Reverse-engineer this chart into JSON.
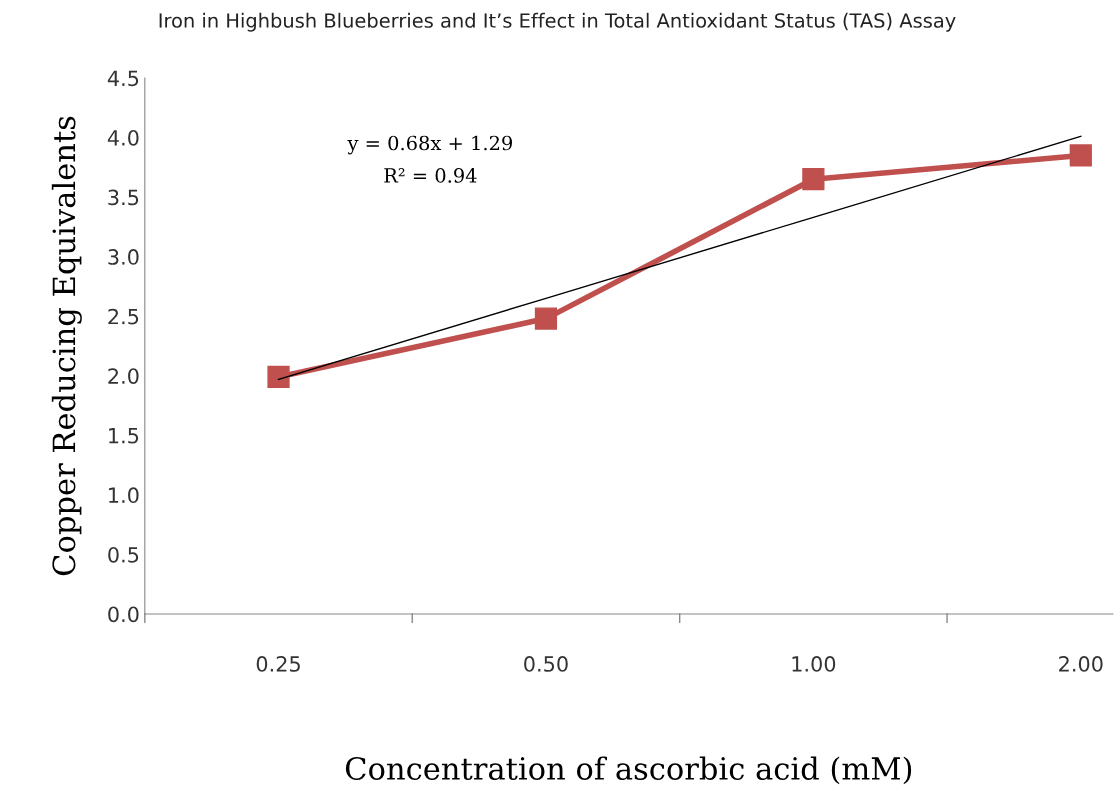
{
  "chart_data": {
    "type": "line",
    "title": "Iron in Highbush Blueberries and It’s Effect in Total Antioxidant Status (TAS) Assay",
    "xlabel": "Concentration of ascorbic acid (mM)",
    "ylabel": "Copper Reducing Equivalents",
    "categories": [
      "0.25",
      "0.50",
      "1.00",
      "2.00"
    ],
    "series": [
      {
        "color": "#c0504d",
        "values": [
          1.99,
          2.48,
          3.65,
          3.85
        ],
        "marker": "square"
      },
      {
        "color": "#000000",
        "values": [
          1.97,
          2.65,
          3.33,
          4.01
        ],
        "marker": "none"
      }
    ],
    "annotations": [
      "y = 0.68x + 1.29",
      "R² = 0.94"
    ],
    "ylim": [
      0,
      4.5
    ],
    "yticks": [
      {
        "value": 0,
        "label": "0.0"
      },
      {
        "value": 0.5,
        "label": "0.5"
      },
      {
        "value": 1,
        "label": "1.0"
      },
      {
        "value": 1.5,
        "label": "1.5"
      },
      {
        "value": 2,
        "label": "2.0"
      },
      {
        "value": 2.5,
        "label": "2.5"
      },
      {
        "value": 3,
        "label": "3.0"
      },
      {
        "value": 3.5,
        "label": "3.5"
      },
      {
        "value": 4,
        "label": "4.0"
      },
      {
        "value": 4.5,
        "label": "4.5"
      }
    ],
    "grid": false,
    "legend": false
  }
}
